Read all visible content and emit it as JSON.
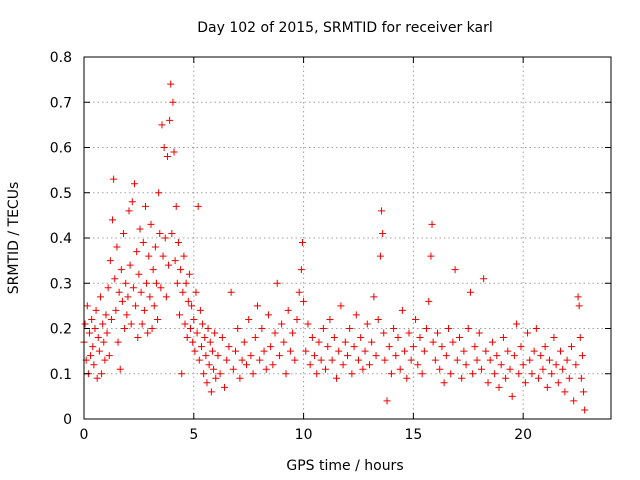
{
  "chart_data": {
    "type": "scatter",
    "title": "Day 102 of 2015, SRMTID for receiver karl",
    "xlabel": "GPS time / hours",
    "ylabel": "SRMTID / TECUs",
    "xlim": [
      0,
      24
    ],
    "ylim": [
      0,
      0.8
    ],
    "x_ticks": [
      0,
      5,
      10,
      15,
      20
    ],
    "y_ticks": [
      0,
      0.1,
      0.2,
      0.3,
      0.4,
      0.5,
      0.6,
      0.7,
      0.8
    ],
    "x_tick_labels": [
      "0",
      "5",
      "10",
      "15",
      "20"
    ],
    "y_tick_labels": [
      "0",
      "0.1",
      "0.2",
      "0.3",
      "0.4",
      "0.5",
      "0.6",
      "0.7",
      "0.8"
    ],
    "grid": true,
    "marker": "+",
    "color": "#ee0000",
    "series": [
      {
        "name": "SRMTID",
        "points": [
          [
            0.0,
            0.17
          ],
          [
            0.05,
            0.21
          ],
          [
            0.1,
            0.13
          ],
          [
            0.15,
            0.25
          ],
          [
            0.2,
            0.1
          ],
          [
            0.25,
            0.19
          ],
          [
            0.3,
            0.14
          ],
          [
            0.35,
            0.22
          ],
          [
            0.4,
            0.16
          ],
          [
            0.45,
            0.12
          ],
          [
            0.5,
            0.2
          ],
          [
            0.55,
            0.24
          ],
          [
            0.6,
            0.09
          ],
          [
            0.65,
            0.18
          ],
          [
            0.7,
            0.15
          ],
          [
            0.75,
            0.27
          ],
          [
            0.8,
            0.1
          ],
          [
            0.85,
            0.21
          ],
          [
            0.9,
            0.17
          ],
          [
            0.95,
            0.13
          ],
          [
            1.0,
            0.23
          ],
          [
            1.05,
            0.19
          ],
          [
            1.1,
            0.29
          ],
          [
            1.15,
            0.14
          ],
          [
            1.2,
            0.35
          ],
          [
            1.25,
            0.22
          ],
          [
            1.3,
            0.44
          ],
          [
            1.35,
            0.53
          ],
          [
            1.4,
            0.31
          ],
          [
            1.45,
            0.24
          ],
          [
            1.5,
            0.38
          ],
          [
            1.55,
            0.17
          ],
          [
            1.6,
            0.28
          ],
          [
            1.65,
            0.11
          ],
          [
            1.7,
            0.33
          ],
          [
            1.75,
            0.26
          ],
          [
            1.8,
            0.41
          ],
          [
            1.85,
            0.2
          ],
          [
            1.9,
            0.3
          ],
          [
            1.95,
            0.23
          ],
          [
            2.0,
            0.27
          ],
          [
            2.05,
            0.46
          ],
          [
            2.1,
            0.34
          ],
          [
            2.15,
            0.21
          ],
          [
            2.2,
            0.48
          ],
          [
            2.25,
            0.29
          ],
          [
            2.3,
            0.52
          ],
          [
            2.35,
            0.25
          ],
          [
            2.4,
            0.37
          ],
          [
            2.45,
            0.18
          ],
          [
            2.5,
            0.32
          ],
          [
            2.55,
            0.42
          ],
          [
            2.6,
            0.28
          ],
          [
            2.65,
            0.21
          ],
          [
            2.7,
            0.39
          ],
          [
            2.75,
            0.24
          ],
          [
            2.8,
            0.47
          ],
          [
            2.85,
            0.3
          ],
          [
            2.9,
            0.19
          ],
          [
            2.95,
            0.36
          ],
          [
            3.0,
            0.27
          ],
          [
            3.05,
            0.43
          ],
          [
            3.1,
            0.2
          ],
          [
            3.15,
            0.33
          ],
          [
            3.2,
            0.25
          ],
          [
            3.25,
            0.38
          ],
          [
            3.3,
            0.3
          ],
          [
            3.35,
            0.22
          ],
          [
            3.4,
            0.5
          ],
          [
            3.45,
            0.41
          ],
          [
            3.5,
            0.29
          ],
          [
            3.55,
            0.65
          ],
          [
            3.6,
            0.36
          ],
          [
            3.65,
            0.6
          ],
          [
            3.7,
            0.4
          ],
          [
            3.75,
            0.27
          ],
          [
            3.8,
            0.58
          ],
          [
            3.85,
            0.34
          ],
          [
            3.9,
            0.66
          ],
          [
            3.95,
            0.74
          ],
          [
            4.0,
            0.41
          ],
          [
            4.05,
            0.7
          ],
          [
            4.1,
            0.59
          ],
          [
            4.15,
            0.35
          ],
          [
            4.2,
            0.47
          ],
          [
            4.25,
            0.3
          ],
          [
            4.3,
            0.39
          ],
          [
            4.35,
            0.23
          ],
          [
            4.4,
            0.33
          ],
          [
            4.45,
            0.1
          ],
          [
            4.5,
            0.28
          ],
          [
            4.55,
            0.36
          ],
          [
            4.6,
            0.21
          ],
          [
            4.65,
            0.3
          ],
          [
            4.7,
            0.18
          ],
          [
            4.75,
            0.26
          ],
          [
            4.8,
            0.32
          ],
          [
            4.85,
            0.2
          ],
          [
            4.9,
            0.25
          ],
          [
            4.95,
            0.17
          ],
          [
            5.0,
            0.22
          ],
          [
            5.05,
            0.15
          ],
          [
            5.1,
            0.28
          ],
          [
            5.15,
            0.19
          ],
          [
            5.2,
            0.47
          ],
          [
            5.25,
            0.13
          ],
          [
            5.3,
            0.24
          ],
          [
            5.35,
            0.16
          ],
          [
            5.4,
            0.21
          ],
          [
            5.45,
            0.1
          ],
          [
            5.5,
            0.18
          ],
          [
            5.55,
            0.14
          ],
          [
            5.6,
            0.08
          ],
          [
            5.65,
            0.2
          ],
          [
            5.7,
            0.12
          ],
          [
            5.75,
            0.17
          ],
          [
            5.8,
            0.06
          ],
          [
            5.85,
            0.15
          ],
          [
            5.9,
            0.11
          ],
          [
            5.95,
            0.19
          ],
          [
            6.0,
            0.09
          ],
          [
            6.1,
            0.14
          ],
          [
            6.2,
            0.1
          ],
          [
            6.3,
            0.18
          ],
          [
            6.4,
            0.07
          ],
          [
            6.5,
            0.13
          ],
          [
            6.6,
            0.16
          ],
          [
            6.7,
            0.28
          ],
          [
            6.8,
            0.11
          ],
          [
            6.9,
            0.15
          ],
          [
            7.0,
            0.2
          ],
          [
            7.1,
            0.09
          ],
          [
            7.2,
            0.13
          ],
          [
            7.3,
            0.17
          ],
          [
            7.4,
            0.12
          ],
          [
            7.5,
            0.22
          ],
          [
            7.6,
            0.14
          ],
          [
            7.7,
            0.1
          ],
          [
            7.8,
            0.18
          ],
          [
            7.9,
            0.25
          ],
          [
            8.0,
            0.13
          ],
          [
            8.1,
            0.2
          ],
          [
            8.2,
            0.15
          ],
          [
            8.3,
            0.11
          ],
          [
            8.4,
            0.23
          ],
          [
            8.5,
            0.16
          ],
          [
            8.6,
            0.12
          ],
          [
            8.7,
            0.19
          ],
          [
            8.8,
            0.3
          ],
          [
            8.9,
            0.14
          ],
          [
            9.0,
            0.21
          ],
          [
            9.1,
            0.17
          ],
          [
            9.2,
            0.1
          ],
          [
            9.3,
            0.24
          ],
          [
            9.4,
            0.15
          ],
          [
            9.5,
            0.19
          ],
          [
            9.6,
            0.13
          ],
          [
            9.7,
            0.22
          ],
          [
            9.8,
            0.28
          ],
          [
            9.9,
            0.33
          ],
          [
            9.95,
            0.39
          ],
          [
            10.0,
            0.26
          ],
          [
            10.1,
            0.15
          ],
          [
            10.2,
            0.21
          ],
          [
            10.3,
            0.12
          ],
          [
            10.4,
            0.18
          ],
          [
            10.5,
            0.14
          ],
          [
            10.6,
            0.1
          ],
          [
            10.7,
            0.17
          ],
          [
            10.8,
            0.13
          ],
          [
            10.9,
            0.2
          ],
          [
            11.0,
            0.11
          ],
          [
            11.1,
            0.16
          ],
          [
            11.2,
            0.22
          ],
          [
            11.3,
            0.13
          ],
          [
            11.4,
            0.18
          ],
          [
            11.5,
            0.09
          ],
          [
            11.6,
            0.15
          ],
          [
            11.7,
            0.25
          ],
          [
            11.8,
            0.12
          ],
          [
            11.9,
            0.17
          ],
          [
            12.0,
            0.14
          ],
          [
            12.1,
            0.2
          ],
          [
            12.2,
            0.1
          ],
          [
            12.3,
            0.16
          ],
          [
            12.4,
            0.23
          ],
          [
            12.5,
            0.13
          ],
          [
            12.6,
            0.18
          ],
          [
            12.7,
            0.11
          ],
          [
            12.8,
            0.15
          ],
          [
            12.9,
            0.21
          ],
          [
            13.0,
            0.12
          ],
          [
            13.1,
            0.17
          ],
          [
            13.2,
            0.27
          ],
          [
            13.3,
            0.14
          ],
          [
            13.4,
            0.22
          ],
          [
            13.5,
            0.36
          ],
          [
            13.55,
            0.46
          ],
          [
            13.6,
            0.41
          ],
          [
            13.65,
            0.19
          ],
          [
            13.7,
            0.13
          ],
          [
            13.8,
            0.04
          ],
          [
            13.9,
            0.16
          ],
          [
            14.0,
            0.1
          ],
          [
            14.1,
            0.2
          ],
          [
            14.2,
            0.14
          ],
          [
            14.3,
            0.18
          ],
          [
            14.4,
            0.11
          ],
          [
            14.5,
            0.24
          ],
          [
            14.6,
            0.15
          ],
          [
            14.7,
            0.09
          ],
          [
            14.8,
            0.19
          ],
          [
            14.9,
            0.13
          ],
          [
            15.0,
            0.16
          ],
          [
            15.1,
            0.22
          ],
          [
            15.2,
            0.12
          ],
          [
            15.3,
            0.18
          ],
          [
            15.4,
            0.1
          ],
          [
            15.5,
            0.15
          ],
          [
            15.6,
            0.2
          ],
          [
            15.7,
            0.26
          ],
          [
            15.8,
            0.36
          ],
          [
            15.85,
            0.43
          ],
          [
            15.9,
            0.17
          ],
          [
            16.0,
            0.13
          ],
          [
            16.1,
            0.19
          ],
          [
            16.2,
            0.11
          ],
          [
            16.3,
            0.16
          ],
          [
            16.4,
            0.08
          ],
          [
            16.5,
            0.14
          ],
          [
            16.6,
            0.2
          ],
          [
            16.7,
            0.1
          ],
          [
            16.8,
            0.17
          ],
          [
            16.9,
            0.33
          ],
          [
            17.0,
            0.13
          ],
          [
            17.1,
            0.18
          ],
          [
            17.2,
            0.09
          ],
          [
            17.3,
            0.15
          ],
          [
            17.4,
            0.12
          ],
          [
            17.5,
            0.2
          ],
          [
            17.6,
            0.28
          ],
          [
            17.7,
            0.1
          ],
          [
            17.8,
            0.16
          ],
          [
            17.9,
            0.13
          ],
          [
            18.0,
            0.19
          ],
          [
            18.1,
            0.11
          ],
          [
            18.2,
            0.31
          ],
          [
            18.3,
            0.15
          ],
          [
            18.4,
            0.08
          ],
          [
            18.5,
            0.13
          ],
          [
            18.6,
            0.17
          ],
          [
            18.7,
            0.1
          ],
          [
            18.8,
            0.14
          ],
          [
            18.9,
            0.07
          ],
          [
            19.0,
            0.12
          ],
          [
            19.1,
            0.18
          ],
          [
            19.2,
            0.09
          ],
          [
            19.3,
            0.15
          ],
          [
            19.4,
            0.11
          ],
          [
            19.5,
            0.05
          ],
          [
            19.6,
            0.14
          ],
          [
            19.7,
            0.21
          ],
          [
            19.8,
            0.1
          ],
          [
            19.9,
            0.16
          ],
          [
            20.0,
            0.12
          ],
          [
            20.1,
            0.08
          ],
          [
            20.2,
            0.19
          ],
          [
            20.3,
            0.13
          ],
          [
            20.4,
            0.1
          ],
          [
            20.5,
            0.15
          ],
          [
            20.6,
            0.2
          ],
          [
            20.7,
            0.09
          ],
          [
            20.8,
            0.14
          ],
          [
            20.9,
            0.11
          ],
          [
            21.0,
            0.16
          ],
          [
            21.1,
            0.07
          ],
          [
            21.2,
            0.13
          ],
          [
            21.3,
            0.1
          ],
          [
            21.4,
            0.18
          ],
          [
            21.5,
            0.12
          ],
          [
            21.6,
            0.08
          ],
          [
            21.7,
            0.15
          ],
          [
            21.8,
            0.11
          ],
          [
            21.9,
            0.06
          ],
          [
            22.0,
            0.13
          ],
          [
            22.1,
            0.09
          ],
          [
            22.2,
            0.16
          ],
          [
            22.3,
            0.04
          ],
          [
            22.4,
            0.12
          ],
          [
            22.5,
            0.27
          ],
          [
            22.55,
            0.25
          ],
          [
            22.6,
            0.18
          ],
          [
            22.65,
            0.09
          ],
          [
            22.7,
            0.14
          ],
          [
            22.75,
            0.06
          ],
          [
            22.8,
            0.02
          ]
        ]
      }
    ]
  }
}
